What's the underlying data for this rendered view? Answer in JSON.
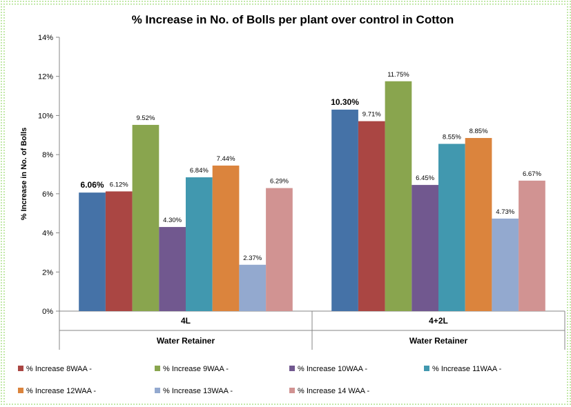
{
  "chart_data": {
    "type": "bar",
    "title": "% Increase in No. of Bolls per plant over control in Cotton",
    "ylabel": "% Increase in No. of Bolls",
    "ylim": [
      0,
      14
    ],
    "y_ticks": [
      "0%",
      "2%",
      "4%",
      "6%",
      "8%",
      "10%",
      "12%",
      "14%"
    ],
    "grid": false,
    "legend_position": "bottom",
    "categories": [
      "4L",
      "4+2L"
    ],
    "category_group_label": "Water Retainer",
    "series": [
      {
        "legend": "",
        "color": "#4572a7",
        "values": [
          6.06,
          10.3
        ],
        "labels": [
          "6.06%",
          "10.30%"
        ]
      },
      {
        "legend": "% Increase 8WAA -",
        "color": "#aa4643",
        "values": [
          6.12,
          9.71
        ],
        "labels": [
          "6.12%",
          "9.71%"
        ]
      },
      {
        "legend": "% Increase 9WAA -",
        "color": "#89a54e",
        "values": [
          9.52,
          11.75
        ],
        "labels": [
          "9.52%",
          "11.75%"
        ]
      },
      {
        "legend": "% Increase 10WAA -",
        "color": "#71588f",
        "values": [
          4.3,
          6.45
        ],
        "labels": [
          "4.30%",
          "6.45%"
        ]
      },
      {
        "legend": "% Increase 11WAA -",
        "color": "#4198af",
        "values": [
          6.84,
          8.55
        ],
        "labels": [
          "6.84%",
          "8.55%"
        ]
      },
      {
        "legend": "% Increase 12WAA -",
        "color": "#db843d",
        "values": [
          7.44,
          8.85
        ],
        "labels": [
          "7.44%",
          "8.85%"
        ]
      },
      {
        "legend": "% Increase 13WAA -",
        "color": "#93a9cf",
        "values": [
          2.37,
          4.73
        ],
        "labels": [
          "2.37%",
          "4.73%"
        ]
      },
      {
        "legend": "% Increase 14 WAA -",
        "color": "#d19392",
        "values": [
          6.29,
          6.67
        ],
        "labels": [
          "6.29%",
          "6.67%"
        ]
      }
    ]
  }
}
